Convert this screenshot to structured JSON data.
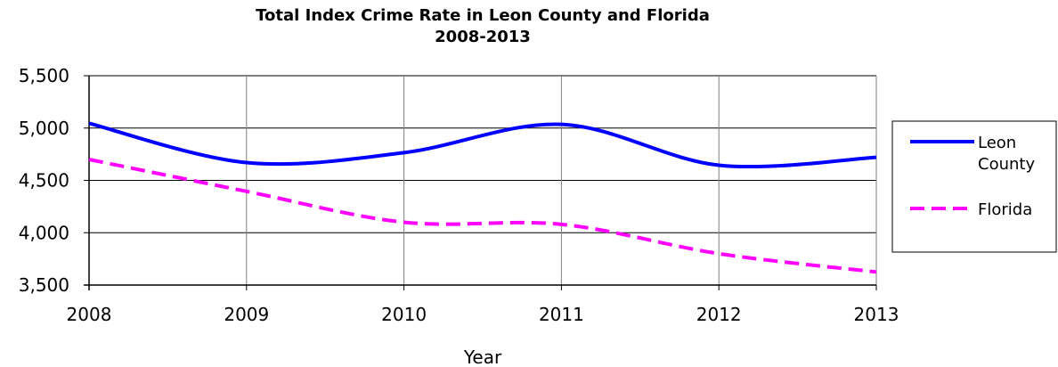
{
  "chart_data": {
    "type": "line",
    "title": "Total Index Crime Rate in Leon County and Florida",
    "subtitle": "2008-2013",
    "xlabel": "Year",
    "ylabel": "",
    "categories": [
      "2008",
      "2009",
      "2010",
      "2011",
      "2012",
      "2013"
    ],
    "ylim": [
      3500,
      5500
    ],
    "yticks": [
      3500,
      4000,
      4500,
      5000,
      5500
    ],
    "ytick_labels": [
      "3,500",
      "4,000",
      "4,500",
      "5,000",
      "5,500"
    ],
    "grid": true,
    "legend_position": "right",
    "series": [
      {
        "name": "Leon County",
        "name_lines": [
          "Leon",
          "County"
        ],
        "values": [
          5045,
          4670,
          4765,
          5035,
          4645,
          4720
        ],
        "color": "#0000ff",
        "style": "solid"
      },
      {
        "name": "Florida",
        "name_lines": [
          "Florida"
        ],
        "values": [
          4700,
          4395,
          4100,
          4080,
          3800,
          3625
        ],
        "color": "#ff00ff",
        "style": "dashed"
      }
    ]
  }
}
